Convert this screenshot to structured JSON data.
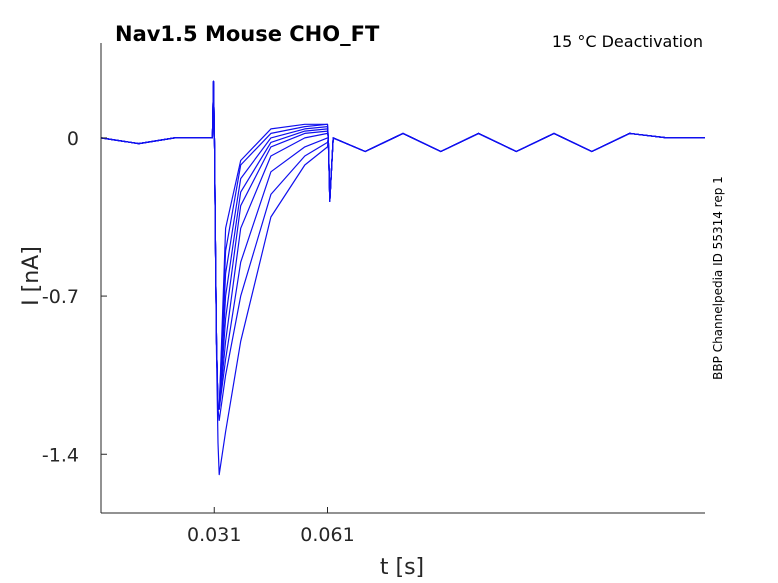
{
  "chart_data": {
    "type": "line",
    "title": "Nav1.5  Mouse  CHO_FT",
    "subtitle": "15 °C  Deactivation",
    "side_label": "BBP Channelpedia ID 55314 rep 1",
    "xlabel": "t [s]",
    "ylabel": "I [nA]",
    "xlim": [
      0.001,
      0.161
    ],
    "ylim": [
      -1.66,
      0.42
    ],
    "x_ticks": [
      0.031,
      0.061
    ],
    "x_tick_labels": [
      "0.031",
      "0.061"
    ],
    "y_ticks": [
      0,
      -0.7,
      -1.4
    ],
    "y_tick_labels": [
      "0",
      "-0.7",
      "-1.4"
    ],
    "grid": false,
    "line_color": "#1010ee",
    "x": [
      0.001,
      0.011,
      0.0205,
      0.0305,
      0.0308,
      0.0311,
      0.0313,
      0.0316,
      0.032,
      0.0323,
      0.034,
      0.038,
      0.046,
      0.055,
      0.061,
      0.0612,
      0.0616,
      0.0625,
      0.071,
      0.081,
      0.091,
      0.101,
      0.111,
      0.121,
      0.131,
      0.141,
      0.151,
      0.161
    ],
    "series": [
      {
        "values": [
          0.0,
          -0.025,
          0.0,
          0.0,
          0.25,
          -0.05,
          -0.45,
          -0.9,
          -1.2,
          -1.2,
          -0.4,
          -0.1,
          0.04,
          0.06,
          0.06,
          0.0,
          -0.28,
          0.0,
          -0.06,
          0.02,
          -0.06,
          0.02,
          -0.06,
          0.02,
          -0.06,
          0.02,
          0.0,
          0.0
        ]
      },
      {
        "values": [
          0.0,
          -0.025,
          0.0,
          0.0,
          0.25,
          -0.05,
          -0.45,
          -0.9,
          -1.2,
          -1.2,
          -0.5,
          -0.12,
          0.02,
          0.05,
          0.06,
          0.0,
          -0.28,
          0.0,
          -0.06,
          0.02,
          -0.06,
          0.02,
          -0.06,
          0.02,
          -0.06,
          0.02,
          0.0,
          0.0
        ]
      },
      {
        "values": [
          0.0,
          -0.025,
          0.0,
          0.0,
          0.25,
          -0.05,
          -0.45,
          -0.9,
          -1.2,
          -1.2,
          -0.6,
          -0.18,
          0.0,
          0.04,
          0.05,
          0.0,
          -0.28,
          0.0,
          -0.06,
          0.02,
          -0.06,
          0.02,
          -0.06,
          0.02,
          -0.06,
          0.02,
          0.0,
          0.0
        ]
      },
      {
        "values": [
          0.0,
          -0.025,
          0.0,
          0.0,
          0.25,
          -0.05,
          -0.45,
          -0.9,
          -1.2,
          -1.2,
          -0.7,
          -0.24,
          -0.02,
          0.03,
          0.04,
          0.0,
          -0.28,
          0.0,
          -0.06,
          0.02,
          -0.06,
          0.02,
          -0.06,
          0.02,
          -0.06,
          0.02,
          0.0,
          0.0
        ]
      },
      {
        "values": [
          0.0,
          -0.025,
          0.0,
          0.0,
          0.25,
          -0.05,
          -0.45,
          -0.9,
          -1.2,
          -1.2,
          -0.8,
          -0.3,
          -0.04,
          0.02,
          0.03,
          0.0,
          -0.28,
          0.0,
          -0.06,
          0.02,
          -0.06,
          0.02,
          -0.06,
          0.02,
          -0.06,
          0.02,
          0.0,
          0.0
        ]
      },
      {
        "values": [
          0.0,
          -0.025,
          0.0,
          0.0,
          0.25,
          -0.05,
          -0.45,
          -0.9,
          -1.2,
          -1.2,
          -0.9,
          -0.4,
          -0.08,
          0.0,
          0.02,
          0.0,
          -0.28,
          0.0,
          -0.06,
          0.02,
          -0.06,
          0.02,
          -0.06,
          0.02,
          -0.06,
          0.02,
          0.0,
          0.0
        ]
      },
      {
        "values": [
          0.0,
          -0.025,
          0.0,
          0.0,
          0.25,
          -0.05,
          -0.45,
          -0.9,
          -1.2,
          -1.2,
          -0.98,
          -0.55,
          -0.15,
          -0.04,
          0.0,
          0.0,
          -0.28,
          0.0,
          -0.06,
          0.02,
          -0.06,
          0.02,
          -0.06,
          0.02,
          -0.06,
          0.02,
          0.0,
          0.0
        ]
      },
      {
        "values": [
          0.0,
          -0.025,
          0.0,
          0.0,
          0.25,
          -0.05,
          -0.45,
          -0.9,
          -1.2,
          -1.25,
          -1.05,
          -0.7,
          -0.25,
          -0.08,
          -0.02,
          0.0,
          -0.28,
          0.0,
          -0.06,
          0.02,
          -0.06,
          0.02,
          -0.06,
          0.02,
          -0.06,
          0.02,
          0.0,
          0.0
        ]
      },
      {
        "values": [
          0.0,
          -0.025,
          0.0,
          0.0,
          0.25,
          -0.05,
          -0.45,
          -0.95,
          -1.35,
          -1.49,
          -1.3,
          -0.9,
          -0.35,
          -0.12,
          -0.04,
          0.0,
          -0.28,
          0.0,
          -0.06,
          0.02,
          -0.06,
          0.02,
          -0.06,
          0.02,
          -0.06,
          0.02,
          0.0,
          0.0
        ]
      }
    ]
  }
}
